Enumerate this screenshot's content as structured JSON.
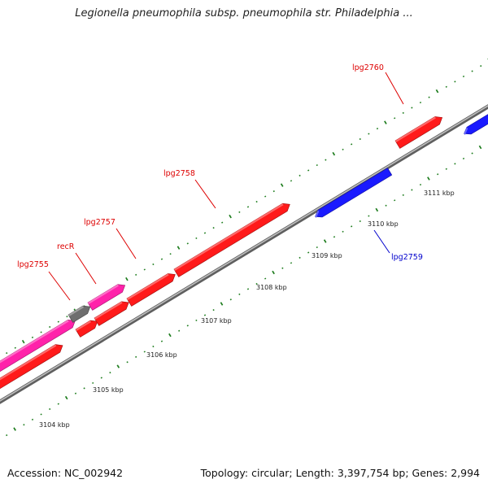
{
  "title": "Legionella pneumophila subsp. pneumophila str. Philadelphia ...",
  "footer": {
    "accession": "Accession: NC_002942",
    "topology": "Topology: circular; Length: 3,397,754 bp; Genes: 2,994"
  },
  "colors": {
    "background": "#ffffff",
    "backbone": "#8c8c8c",
    "tick": "#1e7d1e",
    "forward_gene": "#ff1a1a",
    "reverse_gene": "#1a1aff",
    "orf_gene": "#ff22aa",
    "rna_gene": "#6e6e6e",
    "forward_label": "#dd0000",
    "reverse_label": "#0000cc"
  },
  "scale_labels": [
    "3104 kbp",
    "3105 kbp",
    "3106 kbp",
    "3107 kbp",
    "3108 kbp",
    "3109 kbp",
    "3110 kbp",
    "3111 kbp"
  ],
  "genes": [
    {
      "name": "lpg2755",
      "strand": "forward",
      "kind": "orf",
      "labeled": true
    },
    {
      "name": "recR",
      "strand": "forward",
      "kind": "rna",
      "labeled": true
    },
    {
      "name": "lpg2757",
      "strand": "forward",
      "kind": "cds",
      "labeled": true
    },
    {
      "name": "lpg2758",
      "strand": "forward",
      "kind": "cds",
      "labeled": true
    },
    {
      "name": "lpg2759",
      "strand": "reverse",
      "kind": "cds",
      "labeled": true
    },
    {
      "name": "lpg2760",
      "strand": "forward",
      "kind": "cds",
      "labeled": true
    }
  ]
}
